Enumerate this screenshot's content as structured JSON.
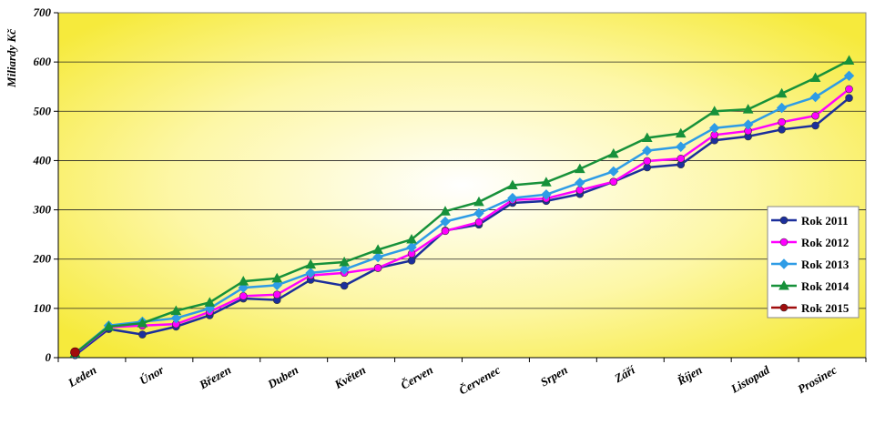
{
  "chart_data": {
    "type": "line",
    "title": "",
    "xlabel": "",
    "ylabel": "Miliardy Kč",
    "ylim": [
      0,
      700
    ],
    "yticks": [
      0,
      100,
      200,
      300,
      400,
      500,
      600,
      700
    ],
    "grid": true,
    "legend_position": "right",
    "month_labels": [
      "Leden",
      "Únor",
      "Březen",
      "Duben",
      "Květen",
      "Červen",
      "Červenec",
      "Srpen",
      "Září",
      "Říjen",
      "Listopad",
      "Prosinec"
    ],
    "points_per_month": 2,
    "series": [
      {
        "name": "Rok 2011",
        "color": "#1c2f9c",
        "marker": "circle",
        "values": [
          5,
          58,
          47,
          63,
          86,
          120,
          117,
          158,
          146,
          182,
          197,
          258,
          270,
          314,
          318,
          332,
          357,
          386,
          392,
          441,
          449,
          463,
          471,
          527
        ]
      },
      {
        "name": "Rok 2012",
        "color": "#ff00ff",
        "marker": "circle",
        "values": [
          8,
          62,
          65,
          68,
          93,
          125,
          128,
          167,
          172,
          182,
          211,
          257,
          275,
          320,
          323,
          340,
          357,
          399,
          404,
          452,
          460,
          478,
          491,
          545
        ]
      },
      {
        "name": "Rok 2013",
        "color": "#2e9ce6",
        "marker": "diamond",
        "values": [
          9,
          65,
          73,
          80,
          100,
          142,
          147,
          172,
          179,
          204,
          224,
          276,
          293,
          324,
          331,
          355,
          378,
          420,
          428,
          466,
          473,
          507,
          529,
          572
        ]
      },
      {
        "name": "Rok 2014",
        "color": "#17913a",
        "marker": "triangle",
        "values": [
          9,
          63,
          70,
          95,
          112,
          155,
          161,
          189,
          194,
          219,
          240,
          297,
          316,
          350,
          356,
          383,
          414,
          446,
          455,
          500,
          504,
          536,
          568,
          603
        ]
      },
      {
        "name": "Rok 2015",
        "color": "#a00c0c",
        "marker": "circle",
        "values": [
          11
        ]
      }
    ]
  }
}
